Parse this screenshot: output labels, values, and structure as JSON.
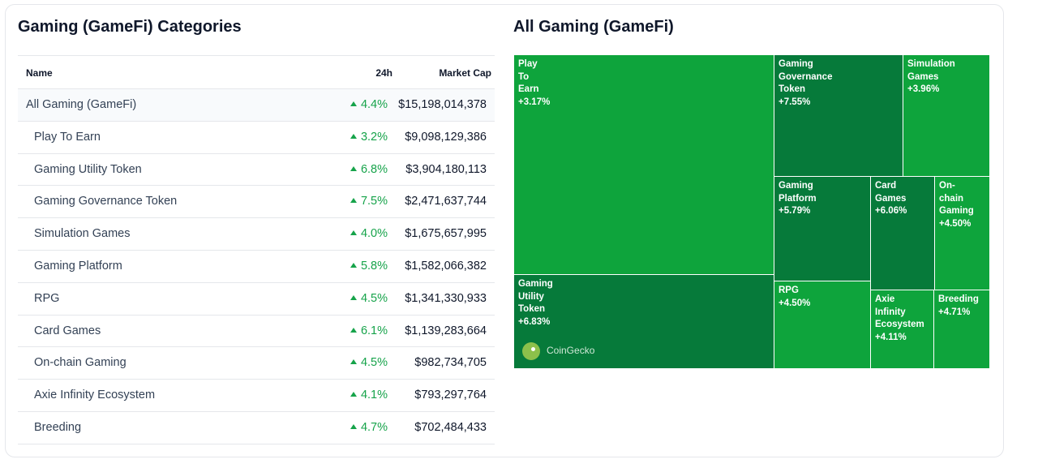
{
  "left_title": "Gaming (GameFi) Categories",
  "right_title": "All Gaming (GameFi)",
  "table": {
    "headers": {
      "name": "Name",
      "change": "24h",
      "market_cap": "Market Cap"
    },
    "rows": [
      {
        "name": "All Gaming (GameFi)",
        "change": "4.4%",
        "market_cap": "$15,198,014,378"
      },
      {
        "name": "Play To Earn",
        "change": "3.2%",
        "market_cap": "$9,098,129,386"
      },
      {
        "name": "Gaming Utility Token",
        "change": "6.8%",
        "market_cap": "$3,904,180,113"
      },
      {
        "name": "Gaming Governance Token",
        "change": "7.5%",
        "market_cap": "$2,471,637,744"
      },
      {
        "name": "Simulation Games",
        "change": "4.0%",
        "market_cap": "$1,675,657,995"
      },
      {
        "name": "Gaming Platform",
        "change": "5.8%",
        "market_cap": "$1,582,066,382"
      },
      {
        "name": "RPG",
        "change": "4.5%",
        "market_cap": "$1,341,330,933"
      },
      {
        "name": "Card Games",
        "change": "6.1%",
        "market_cap": "$1,139,283,664"
      },
      {
        "name": "On-chain Gaming",
        "change": "4.5%",
        "market_cap": "$982,734,705"
      },
      {
        "name": "Axie Infinity Ecosystem",
        "change": "4.1%",
        "market_cap": "$793,297,764"
      },
      {
        "name": "Breeding",
        "change": "4.7%",
        "market_cap": "$702,484,433"
      }
    ]
  },
  "treemap": {
    "watermark": "CoinGecko",
    "colors": {
      "bright": "#0ea43c",
      "dark": "#067a3a"
    },
    "tiles": [
      {
        "label": "Play\nTo\nEarn",
        "change": "+3.17%"
      },
      {
        "label": "Gaming\nUtility\nToken",
        "change": "+6.83%"
      },
      {
        "label": "Gaming\nGovernance\nToken",
        "change": "+7.55%"
      },
      {
        "label": "Simulation\nGames",
        "change": "+3.96%"
      },
      {
        "label": "Gaming\nPlatform",
        "change": "+5.79%"
      },
      {
        "label": "RPG",
        "change": "+4.50%"
      },
      {
        "label": "Card\nGames",
        "change": "+6.06%"
      },
      {
        "label": "On-\nchain\nGaming",
        "change": "+4.50%"
      },
      {
        "label": "Axie\nInfinity\nEcosystem",
        "change": "+4.11%"
      },
      {
        "label": "Breeding",
        "change": "+4.71%"
      }
    ]
  }
}
